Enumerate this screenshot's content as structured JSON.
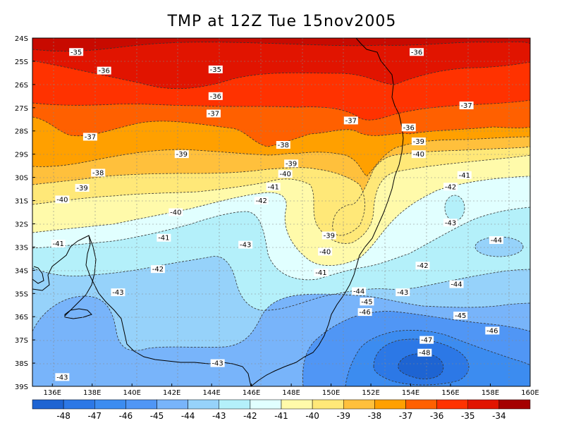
{
  "title": "TMP at 12Z Tue 15nov2005",
  "map": {
    "lat_ticks": [
      "24S",
      "25S",
      "26S",
      "27S",
      "28S",
      "29S",
      "30S",
      "31S",
      "32S",
      "33S",
      "34S",
      "35S",
      "36S",
      "37S",
      "38S",
      "39S"
    ],
    "lon_ticks": [
      "136E",
      "138E",
      "140E",
      "142E",
      "144E",
      "146E",
      "148E",
      "150E",
      "152E",
      "154E",
      "156E",
      "158E",
      "160E"
    ],
    "contour_labels": [
      {
        "text": "-35",
        "lon": 137.2,
        "lat": 24.6
      },
      {
        "text": "-36",
        "lon": 138.6,
        "lat": 25.4
      },
      {
        "text": "-35",
        "lon": 144.2,
        "lat": 25.35
      },
      {
        "text": "-36",
        "lon": 154.3,
        "lat": 24.6
      },
      {
        "text": "-36",
        "lon": 144.2,
        "lat": 26.5
      },
      {
        "text": "-37",
        "lon": 144.1,
        "lat": 27.25
      },
      {
        "text": "-37",
        "lon": 156.8,
        "lat": 26.9
      },
      {
        "text": "-37",
        "lon": 151.0,
        "lat": 27.55
      },
      {
        "text": "-37",
        "lon": 137.9,
        "lat": 28.25
      },
      {
        "text": "-36",
        "lon": 153.9,
        "lat": 27.85
      },
      {
        "text": "-38",
        "lon": 147.6,
        "lat": 28.6
      },
      {
        "text": "-39",
        "lon": 154.4,
        "lat": 28.45
      },
      {
        "text": "-39",
        "lon": 142.5,
        "lat": 29.0
      },
      {
        "text": "-40",
        "lon": 154.4,
        "lat": 29.0
      },
      {
        "text": "-39",
        "lon": 148.0,
        "lat": 29.4
      },
      {
        "text": "-38",
        "lon": 138.3,
        "lat": 29.8
      },
      {
        "text": "-40",
        "lon": 147.7,
        "lat": 29.85
      },
      {
        "text": "-41",
        "lon": 156.7,
        "lat": 29.9
      },
      {
        "text": "-41",
        "lon": 147.1,
        "lat": 30.4
      },
      {
        "text": "-39",
        "lon": 137.5,
        "lat": 30.45
      },
      {
        "text": "-42",
        "lon": 156.0,
        "lat": 30.4
      },
      {
        "text": "-40",
        "lon": 136.5,
        "lat": 30.95
      },
      {
        "text": "-42",
        "lon": 146.5,
        "lat": 31.0
      },
      {
        "text": "-40",
        "lon": 142.2,
        "lat": 31.5
      },
      {
        "text": "-43",
        "lon": 156.0,
        "lat": 31.95
      },
      {
        "text": "-41",
        "lon": 141.6,
        "lat": 32.6
      },
      {
        "text": "-39",
        "lon": 149.9,
        "lat": 32.5
      },
      {
        "text": "-41",
        "lon": 136.3,
        "lat": 32.85
      },
      {
        "text": "-43",
        "lon": 145.7,
        "lat": 32.9
      },
      {
        "text": "-44",
        "lon": 158.3,
        "lat": 32.7
      },
      {
        "text": "-40",
        "lon": 149.7,
        "lat": 33.2
      },
      {
        "text": "-42",
        "lon": 141.3,
        "lat": 33.95
      },
      {
        "text": "-42",
        "lon": 154.6,
        "lat": 33.8
      },
      {
        "text": "-41",
        "lon": 149.5,
        "lat": 34.1
      },
      {
        "text": "-44",
        "lon": 156.3,
        "lat": 34.6
      },
      {
        "text": "-43",
        "lon": 139.3,
        "lat": 34.95
      },
      {
        "text": "-44",
        "lon": 151.4,
        "lat": 34.9
      },
      {
        "text": "-43",
        "lon": 153.6,
        "lat": 34.95
      },
      {
        "text": "-45",
        "lon": 151.8,
        "lat": 35.35
      },
      {
        "text": "-46",
        "lon": 151.7,
        "lat": 35.8
      },
      {
        "text": "-45",
        "lon": 156.5,
        "lat": 35.95
      },
      {
        "text": "-46",
        "lon": 158.1,
        "lat": 36.6
      },
      {
        "text": "-47",
        "lon": 154.8,
        "lat": 37.0
      },
      {
        "text": "-48",
        "lon": 154.7,
        "lat": 37.55
      },
      {
        "text": "-43",
        "lon": 144.3,
        "lat": 38.0
      },
      {
        "text": "-43",
        "lon": 136.5,
        "lat": 38.6
      }
    ]
  },
  "colorbar": {
    "labels": [
      "-48",
      "-47",
      "-46",
      "-45",
      "-44",
      "-43",
      "-42",
      "-41",
      "-40",
      "-39",
      "-38",
      "-37",
      "-36",
      "-35",
      "-34"
    ],
    "colors": [
      "#1e64d2",
      "#2c78e6",
      "#3c8cf0",
      "#5096f5",
      "#78b4fa",
      "#96d2fa",
      "#b4f0fa",
      "#e1ffff",
      "#fffaaa",
      "#ffe878",
      "#ffc03c",
      "#ffa000",
      "#ff6000",
      "#ff3200",
      "#e11400",
      "#a50000"
    ]
  },
  "levels": [
    {
      "color": "#ff3200",
      "value": 0.45
    },
    {
      "color": "#ff6000",
      "value": 0.95
    },
    {
      "color": "#ffa000",
      "value": 1.0
    },
    {
      "color": "#ffc03c",
      "value": 1.0
    },
    {
      "color": "#ffe878",
      "value": 1.0
    },
    {
      "color": "#fffaaa",
      "value": 1.0
    },
    {
      "color": "#e1ffff",
      "value": 1.0
    },
    {
      "color": "#b4f0fa",
      "value": 1.0
    },
    {
      "color": "#96d2fa",
      "value": 1.0
    },
    {
      "color": "#78b4fa",
      "value": 1.0
    },
    {
      "color": "#5096f5",
      "value": 1.0
    },
    {
      "color": "#3c8cf0",
      "value": 1.0
    },
    {
      "color": "#2c78e6",
      "value": 1.0
    },
    {
      "color": "#1e64d2",
      "value": 1.0
    }
  ]
}
